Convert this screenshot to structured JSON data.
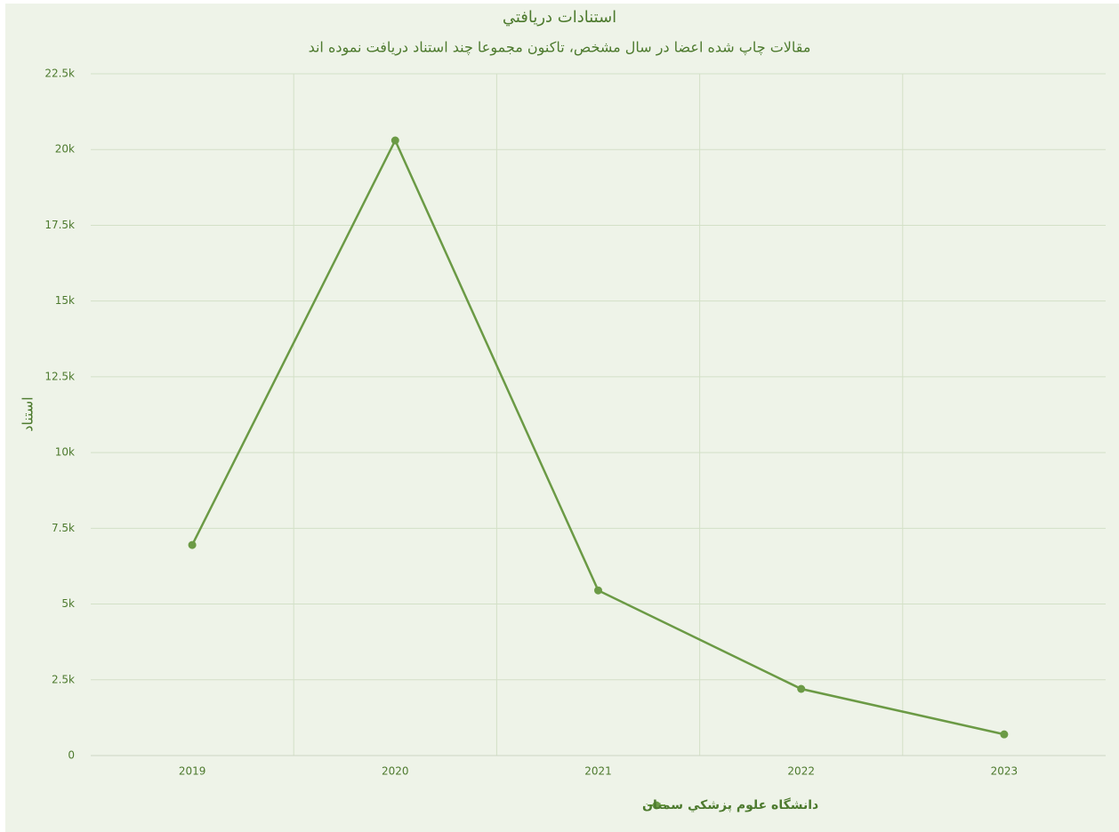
{
  "chart_data": {
    "type": "line",
    "title": "استنادات دريافتي",
    "subtitle": "مقالات چاپ شده اعضا در سال مشخص، تاکنون مجموعا چند استناد دريافت نموده اند",
    "y_axis_label": "استناد",
    "categories": [
      "2019",
      "2020",
      "2021",
      "2022",
      "2023"
    ],
    "series": [
      {
        "name": "دانشگاه علوم پزشکي سمنان",
        "color": "#6b9a45",
        "values": [
          6950,
          20300,
          5450,
          2200,
          700
        ]
      }
    ],
    "ylim": [
      0,
      22500
    ],
    "yticks": [
      0,
      {
        "value": 2500,
        "label": "2.5k"
      },
      {
        "value": 5000,
        "label": "5k"
      },
      {
        "value": 7500,
        "label": "7.5k"
      },
      {
        "value": 10000,
        "label": "10k"
      },
      {
        "value": 12500,
        "label": "12.5k"
      },
      {
        "value": 15000,
        "label": "15k"
      },
      {
        "value": 17500,
        "label": "17.5k"
      },
      {
        "value": 20000,
        "label": "20k"
      },
      {
        "value": 22500,
        "label": "22.5k"
      }
    ],
    "grid": true,
    "legend": "bottom"
  }
}
